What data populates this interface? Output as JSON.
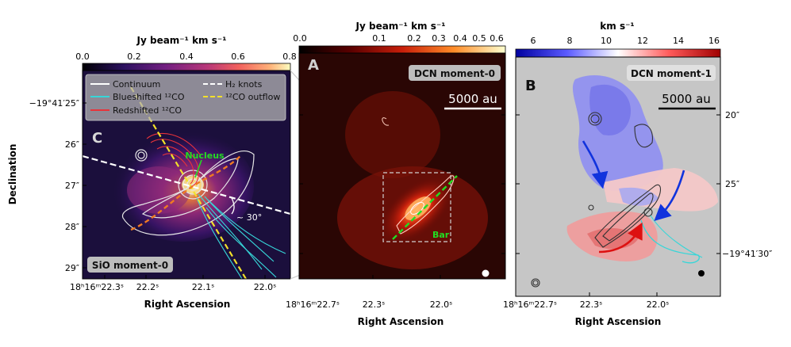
{
  "figure": {
    "panel_c": {
      "letter": "C",
      "colorbar_unit": "Jy beam⁻¹ km s⁻¹",
      "colorbar_ticks": [
        "0.0",
        "0.2",
        "0.4",
        "0.6",
        "0.8"
      ],
      "legend": {
        "continuum": "Continuum",
        "blueshifted": "Blueshifted ¹²CO",
        "redshifted": "Redshifted ¹²CO",
        "h2_knots": "H₂ knots",
        "outflow": "¹²CO outflow"
      },
      "y_ticks": [
        "−19°41′25″",
        "26″",
        "27″",
        "28″",
        "29″"
      ],
      "x_ticks": [
        "18ʰ16ᵐ22.3ˢ",
        "22.2ˢ",
        "22.1ˢ",
        "22.0ˢ"
      ],
      "nucleus_label": "Nucleus",
      "angle_label": "~ 30°",
      "badge": "SiO moment-0",
      "xlabel": "Right Ascension",
      "ylabel": "Declination"
    },
    "panel_a": {
      "letter": "A",
      "colorbar_unit": "Jy beam⁻¹ km s⁻¹",
      "colorbar_ticks": [
        "0.0",
        "0.1",
        "0.2",
        "0.3",
        "0.4",
        "0.5",
        "0.6"
      ],
      "badge": "DCN moment-0",
      "scalebar": "5000 au",
      "bar_label": "Bar",
      "x_ticks": [
        "18ʰ16ᵐ22.7ˢ",
        "22.3ˢ",
        "22.0ˢ"
      ],
      "xlabel": "Right Ascension"
    },
    "panel_b": {
      "letter": "B",
      "colorbar_unit": "km s⁻¹",
      "colorbar_ticks": [
        "6",
        "8",
        "10",
        "12",
        "14",
        "16"
      ],
      "badge": "DCN moment-1",
      "scalebar": "5000 au",
      "y_ticks": [
        "20″",
        "25″",
        "−19°41′30″"
      ],
      "x_ticks": [
        "18ʰ16ᵐ22.7ˢ",
        "22.3ˢ",
        "22.0ˢ"
      ],
      "xlabel": "Right Ascension"
    }
  }
}
